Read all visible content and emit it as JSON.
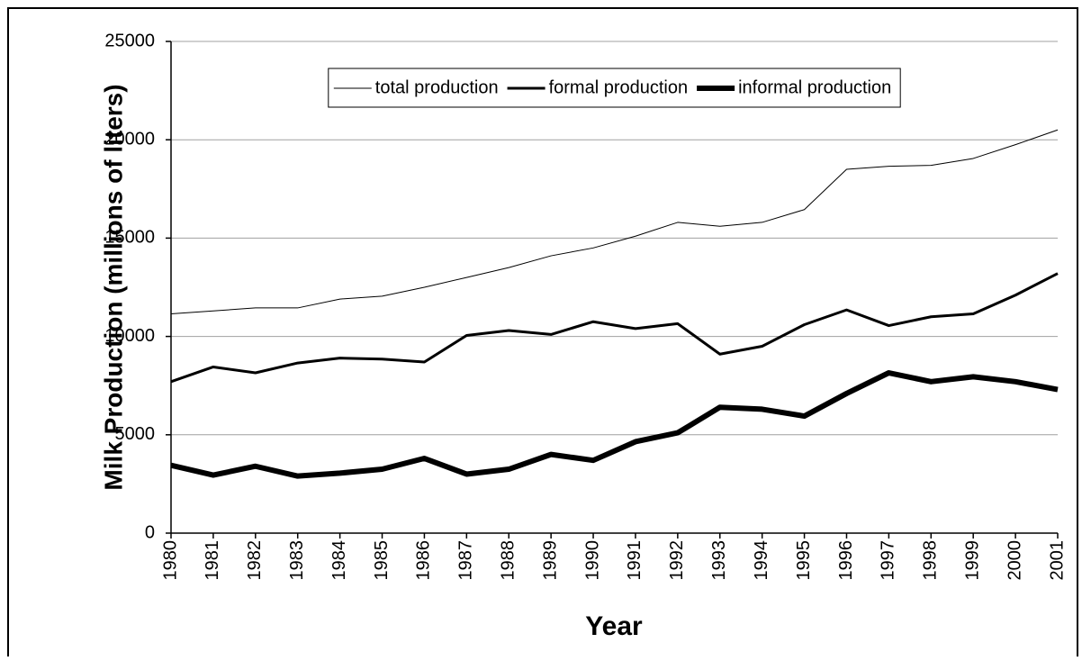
{
  "chart_data": {
    "type": "line",
    "y_label": "Milk Production (millions of liters)",
    "x_label": "Year",
    "x": [
      1980,
      1981,
      1982,
      1983,
      1984,
      1985,
      1986,
      1987,
      1988,
      1989,
      1990,
      1991,
      1992,
      1993,
      1994,
      1995,
      1996,
      1997,
      1998,
      1999,
      2000,
      2001
    ],
    "xlim": [
      1980,
      2001
    ],
    "xticks": [
      1980,
      1981,
      1982,
      1983,
      1984,
      1985,
      1986,
      1987,
      1988,
      1989,
      1990,
      1991,
      1992,
      1993,
      1994,
      1995,
      1996,
      1997,
      1998,
      1999,
      2000,
      2001
    ],
    "ylim": [
      0,
      25000
    ],
    "yticks": [
      0,
      5000,
      10000,
      15000,
      20000,
      25000
    ],
    "grid": true,
    "legend": "upper center",
    "series": [
      {
        "name": "total production",
        "color": "#000000",
        "line_width": 1,
        "values": [
          11150,
          11300,
          11450,
          11450,
          11900,
          12050,
          12500,
          13000,
          13500,
          14100,
          14500,
          15100,
          15800,
          15600,
          15800,
          16450,
          18500,
          18650,
          18700,
          19050,
          19750,
          20500
        ]
      },
      {
        "name": "formal production",
        "color": "#000000",
        "line_width": 3,
        "values": [
          7700,
          8450,
          8150,
          8650,
          8900,
          8850,
          8700,
          10050,
          10300,
          10100,
          10750,
          10400,
          10650,
          9100,
          9500,
          10600,
          11350,
          10550,
          11000,
          11150,
          12100,
          13200
        ]
      },
      {
        "name": "informal production",
        "color": "#000000",
        "line_width": 6,
        "values": [
          3450,
          2950,
          3400,
          2900,
          3050,
          3250,
          3800,
          3000,
          3250,
          4000,
          3700,
          4650,
          5100,
          6400,
          6300,
          5950,
          7100,
          8150,
          7700,
          7950,
          7700,
          7300
        ]
      }
    ]
  }
}
